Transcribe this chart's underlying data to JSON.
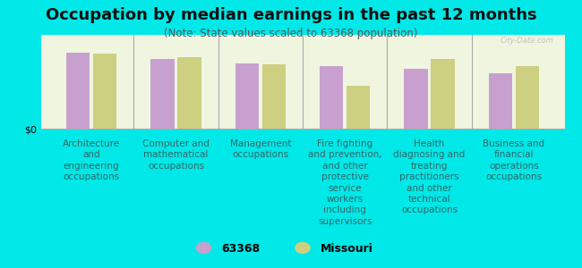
{
  "title": "Occupation by median earnings in the past 12 months",
  "subtitle": "(Note: State values scaled to 63368 population)",
  "background_color": "#00e8e8",
  "plot_bg_start": "#f0f5e0",
  "plot_bg_end": "#e0edd0",
  "bar_color_63368": "#c8a0d0",
  "bar_color_missouri": "#ccd080",
  "watermark": "City-Data.com",
  "categories": [
    "Architecture\nand\nengineering\noccupations",
    "Computer and\nmathematical\noccupations",
    "Management\noccupations",
    "Fire fighting\nand prevention,\nand other\nprotective\nservice\nworkers\nincluding\nsupervisors",
    "Health\ndiagnosing and\ntreating\npractitioners\nand other\ntechnical\noccupations",
    "Business and\nfinancial\noperations\noccupations"
  ],
  "values_63368": [
    85,
    78,
    73,
    70,
    67,
    62
  ],
  "values_missouri": [
    84,
    80,
    72,
    48,
    78,
    70
  ],
  "ylabel": "$0",
  "legend_label_1": "63368",
  "legend_label_2": "Missouri",
  "title_fontsize": 13,
  "subtitle_fontsize": 8.5,
  "tick_label_fontsize": 7.5,
  "legend_fontsize": 9,
  "title_color": "#111111",
  "subtitle_color": "#555555",
  "label_color": "#336666"
}
